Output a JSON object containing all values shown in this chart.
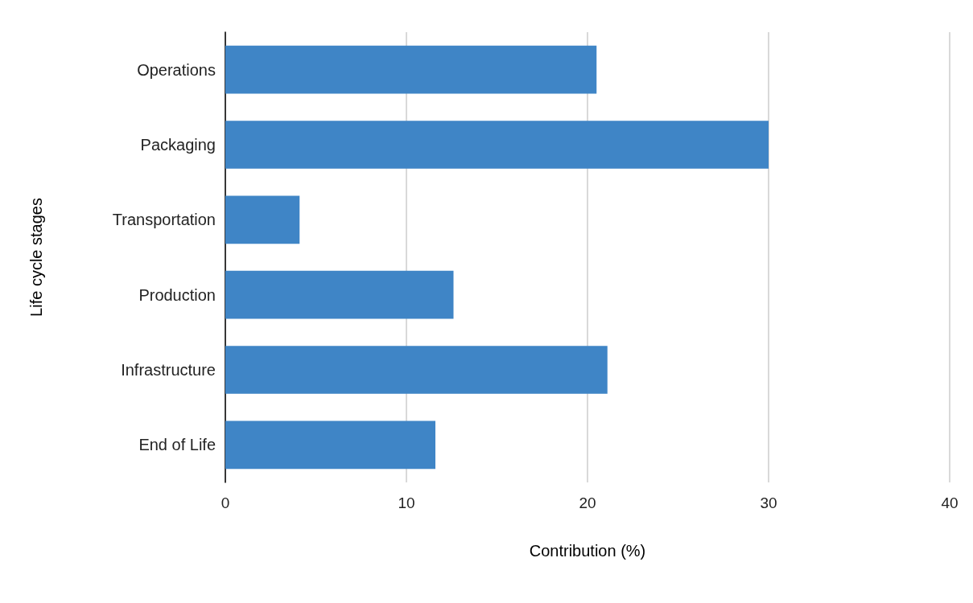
{
  "chart_data": {
    "type": "bar",
    "orientation": "horizontal",
    "xlabel": "Contribution (%)",
    "ylabel": "Life cycle stages",
    "categories": [
      "Operations",
      "Packaging",
      "Transportation",
      "Production",
      "Infrastructure",
      "End of Life"
    ],
    "values": [
      20.5,
      30,
      4.1,
      12.6,
      21.1,
      11.6
    ],
    "color": "#3f85c6",
    "xlim": [
      0,
      40
    ],
    "xticks": [
      0,
      10,
      20,
      30,
      40
    ],
    "grid": "x"
  }
}
